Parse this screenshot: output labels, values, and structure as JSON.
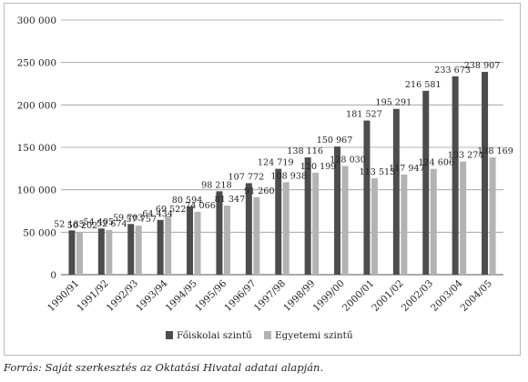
{
  "chart_data": {
    "type": "bar",
    "categories": [
      "1990/91",
      "1991/92",
      "1992/93",
      "1993/94",
      "1994/95",
      "1995/96",
      "1996/97",
      "1997/98",
      "1998/99",
      "1999/00",
      "2000/01",
      "2001/02",
      "2002/03",
      "2003/04",
      "2004/05"
    ],
    "series": [
      {
        "name": "Főiskolai szintű",
        "color": "#4d4d4d",
        "values": [
          52185,
          54405,
          59703,
          64434,
          80594,
          98218,
          107772,
          124719,
          138116,
          150967,
          181527,
          195291,
          216581,
          233673,
          238907
        ],
        "labels": [
          "52 185",
          "54 405",
          "59 703",
          "64 434",
          "80 594",
          "98 218",
          "107 772",
          "124 719",
          "138 116",
          "150 967",
          "181 527",
          "195 291",
          "216 581",
          "233 673",
          "238 907"
        ]
      },
      {
        "name": "Egyetemi szintű",
        "color": "#b3b3b3",
        "values": [
          50202,
          52674,
          57757,
          69522,
          74066,
          81347,
          91260,
          108938,
          120199,
          128030,
          113513,
          117947,
          124606,
          133274,
          138169
        ],
        "labels": [
          "50 202",
          "52 674",
          "57 757",
          "69 522",
          "74 066",
          "81 347",
          "91 260",
          "108 938",
          "120 199",
          "128 030",
          "113 513",
          "117 947",
          "124 606",
          "133 274",
          "138 169"
        ]
      }
    ],
    "ylim": [
      0,
      300000
    ],
    "yticks": [
      0,
      50000,
      100000,
      150000,
      200000,
      250000,
      300000
    ],
    "ytick_labels": [
      "0",
      "50 000",
      "100 000",
      "150 000",
      "200 000",
      "250 000",
      "300 000"
    ],
    "grid": true,
    "legend_position": "bottom"
  },
  "source_note": "Forrás: Saját szerkesztés az Oktatási Hivatal adatai alapján."
}
